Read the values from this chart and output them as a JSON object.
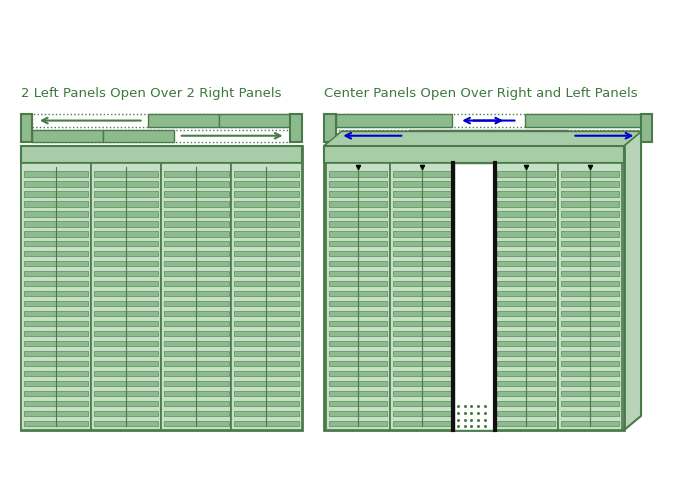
{
  "bg_color": "#ffffff",
  "green_fill": "#8DBB8D",
  "green_dark": "#4A7A4A",
  "green_light": "#C5E0C5",
  "green_mid": "#A8CCA8",
  "blue_arrow": "#0000CC",
  "title1": "2 Left Panels Open Over 2 Right Panels",
  "title2": "Center Panels Open Over Right and Left Panels",
  "title_color": "#3A7A3A",
  "title_fontsize": 9.5
}
